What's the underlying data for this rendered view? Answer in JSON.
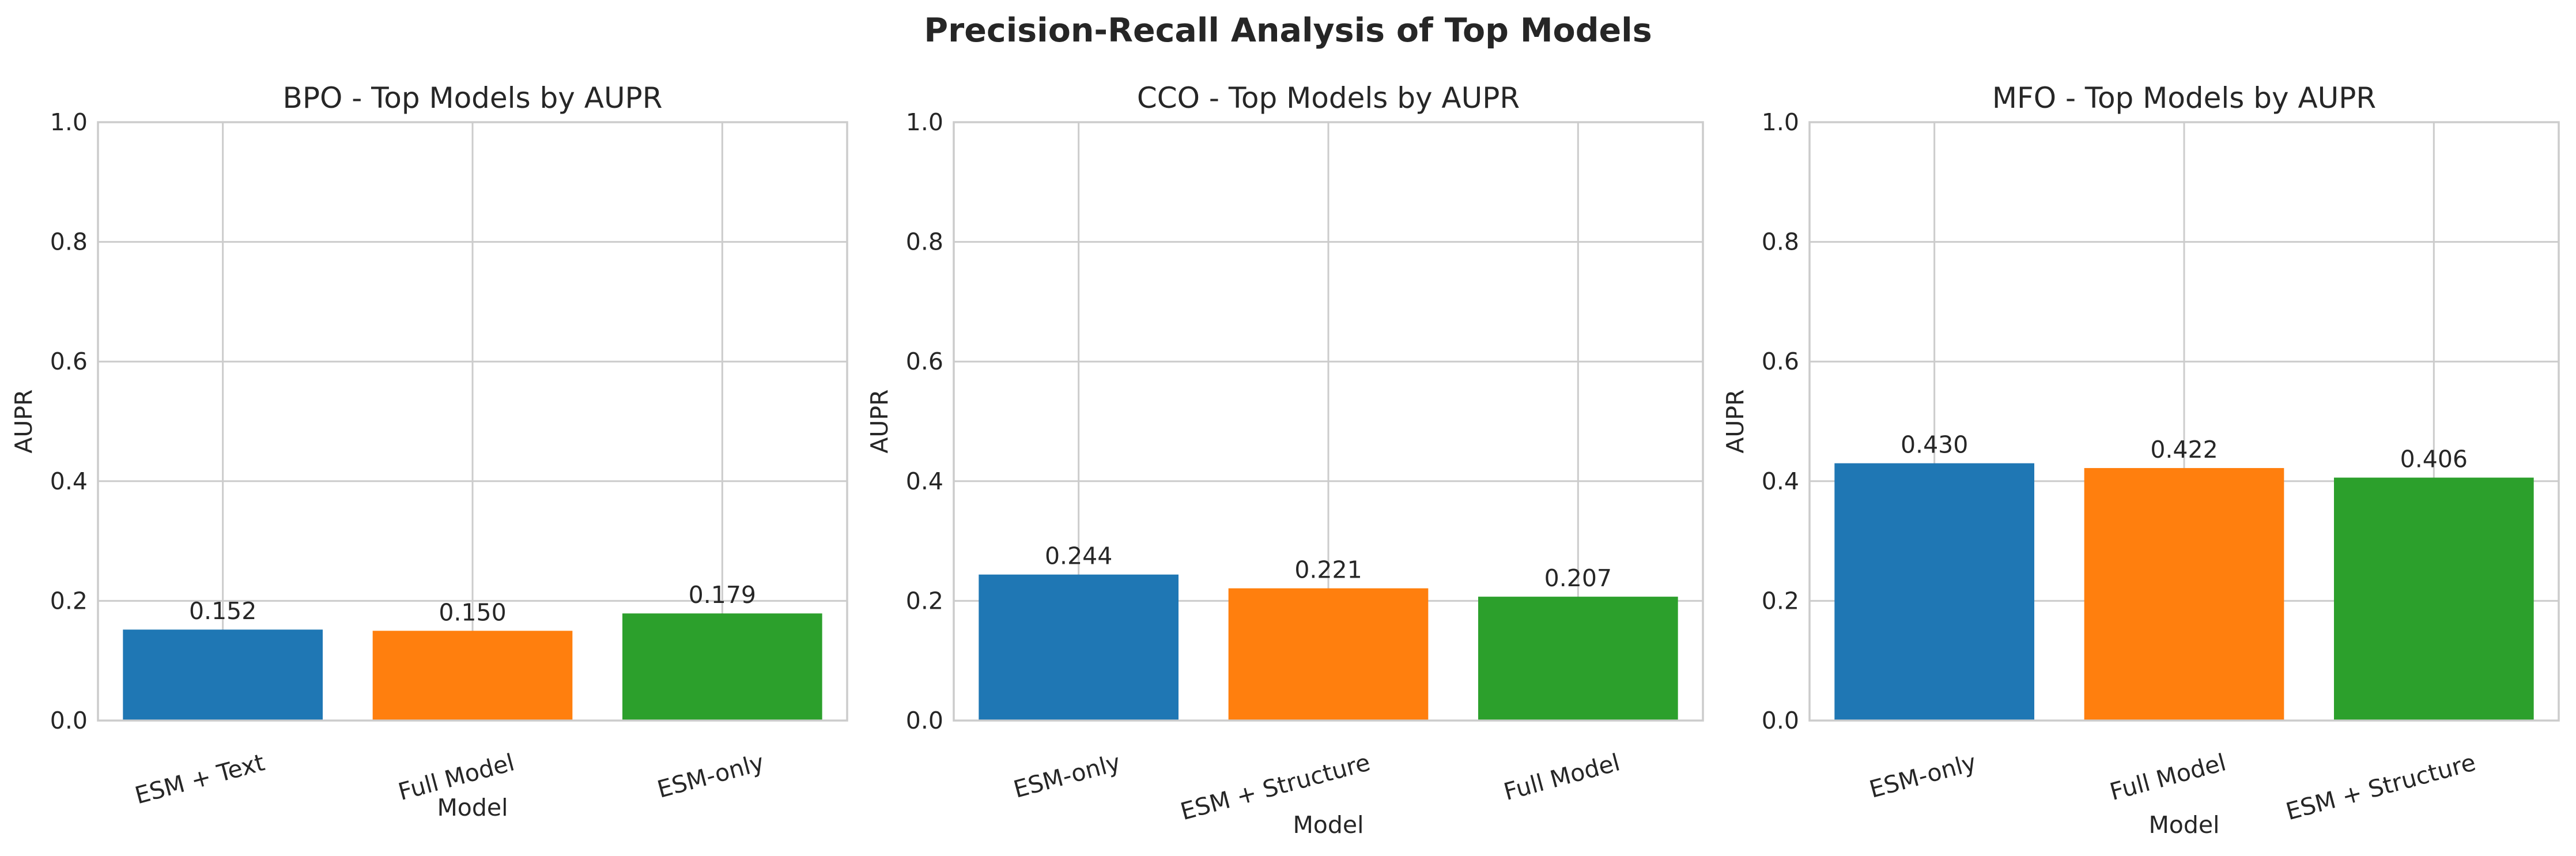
{
  "figure_title": "Precision-Recall Analysis of Top Models",
  "colors": [
    "#1f77b4",
    "#ff7f0e",
    "#2ca02c"
  ],
  "chart_data": [
    {
      "type": "bar",
      "title": "BPO - Top Models by AUPR",
      "xlabel": "Model",
      "ylabel": "AUPR",
      "ylim": [
        0,
        1
      ],
      "yticks": [
        0,
        0.2,
        0.4,
        0.6,
        0.8,
        1.0
      ],
      "ytick_labels": [
        "0.0",
        "0.2",
        "0.4",
        "0.6",
        "0.8",
        "1.0"
      ],
      "grid": true,
      "categories": [
        "ESM + Text",
        "Full Model",
        "ESM-only"
      ],
      "values": [
        0.152,
        0.15,
        0.179
      ],
      "value_labels": [
        "0.152",
        "0.150",
        "0.179"
      ]
    },
    {
      "type": "bar",
      "title": "CCO - Top Models by AUPR",
      "xlabel": "Model",
      "ylabel": "AUPR",
      "ylim": [
        0,
        1
      ],
      "yticks": [
        0,
        0.2,
        0.4,
        0.6,
        0.8,
        1.0
      ],
      "ytick_labels": [
        "0.0",
        "0.2",
        "0.4",
        "0.6",
        "0.8",
        "1.0"
      ],
      "grid": true,
      "categories": [
        "ESM-only",
        "ESM + Structure",
        "Full Model"
      ],
      "values": [
        0.244,
        0.221,
        0.207
      ],
      "value_labels": [
        "0.244",
        "0.221",
        "0.207"
      ]
    },
    {
      "type": "bar",
      "title": "MFO - Top Models by AUPR",
      "xlabel": "Model",
      "ylabel": "AUPR",
      "ylim": [
        0,
        1
      ],
      "yticks": [
        0,
        0.2,
        0.4,
        0.6,
        0.8,
        1.0
      ],
      "ytick_labels": [
        "0.0",
        "0.2",
        "0.4",
        "0.6",
        "0.8",
        "1.0"
      ],
      "grid": true,
      "categories": [
        "ESM-only",
        "Full Model",
        "ESM + Structure"
      ],
      "values": [
        0.43,
        0.422,
        0.406
      ],
      "value_labels": [
        "0.430",
        "0.422",
        "0.406"
      ]
    }
  ]
}
